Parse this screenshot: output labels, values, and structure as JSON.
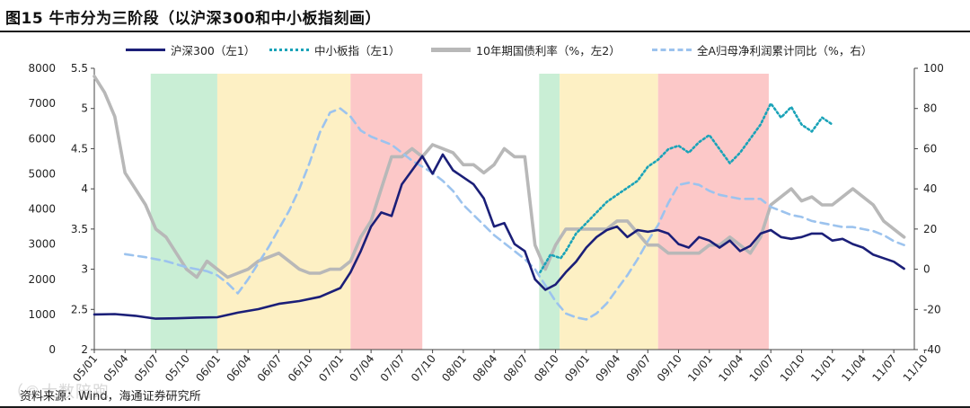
{
  "title": "图15 牛市分为三阶段（以沪深300和中小板指刻画）",
  "footer": "资料来源：Wind，海通证券研究所",
  "watermark": "（©大数陪跑",
  "colors": {
    "hs300": "#1b1f78",
    "zxb": "#1aa3b8",
    "bond": "#b8b8b8",
    "profit": "#9cc3ee",
    "phase_green": "#c9eed5",
    "phase_yellow": "#fdf0c4",
    "phase_red": "#fcc8c8"
  },
  "chart_data": {
    "type": "line",
    "legend": [
      "沪深300（左1）",
      "中小板指（左1）",
      "10年期国债利率（%，左2）",
      "全A归母净利润累计同比（%，右）"
    ],
    "x_ticks": [
      "05/01",
      "05/04",
      "05/07",
      "05/10",
      "06/01",
      "06/04",
      "06/07",
      "06/10",
      "07/01",
      "07/04",
      "07/07",
      "07/10",
      "08/01",
      "08/04",
      "08/07",
      "08/10",
      "09/01",
      "09/04",
      "09/07",
      "09/10",
      "10/01",
      "10/04",
      "10/07",
      "10/10",
      "11/01",
      "11/04",
      "11/07",
      "11/10"
    ],
    "y_left1": {
      "min": 0,
      "max": 8000,
      "ticks": [
        "0",
        "1000",
        "2000",
        "3000",
        "4000",
        "5000",
        "6000",
        "7000",
        "8000"
      ]
    },
    "y_left2": {
      "min": 2,
      "max": 5.5,
      "ticks": [
        "2",
        "2.5",
        "3",
        "3.5",
        "4",
        "4.5",
        "5",
        "5.5"
      ]
    },
    "y_right": {
      "min": -40,
      "max": 100,
      "ticks": [
        "-40",
        "-20",
        "0",
        "20",
        "40",
        "60",
        "80",
        "100"
      ]
    },
    "phases": [
      {
        "from": 5.5,
        "to": 12.0,
        "type": "green"
      },
      {
        "from": 12.0,
        "to": 25.0,
        "type": "yellow"
      },
      {
        "from": 25.0,
        "to": 32.0,
        "type": "red"
      },
      {
        "from": 43.4,
        "to": 45.4,
        "type": "green"
      },
      {
        "from": 45.4,
        "to": 55.0,
        "type": "yellow"
      },
      {
        "from": 55.0,
        "to": 65.8,
        "type": "red"
      }
    ],
    "series": [
      {
        "name": "沪深300（左1）",
        "axis": "left1",
        "points": [
          [
            0,
            1000
          ],
          [
            2,
            1010
          ],
          [
            4,
            960
          ],
          [
            6,
            880
          ],
          [
            8,
            890
          ],
          [
            10,
            910
          ],
          [
            12,
            920
          ],
          [
            14,
            1050
          ],
          [
            16,
            1150
          ],
          [
            18,
            1300
          ],
          [
            20,
            1380
          ],
          [
            22,
            1500
          ],
          [
            24,
            1750
          ],
          [
            25,
            2200
          ],
          [
            26,
            2800
          ],
          [
            27,
            3500
          ],
          [
            28,
            3900
          ],
          [
            29,
            3800
          ],
          [
            30,
            4700
          ],
          [
            31,
            5100
          ],
          [
            32,
            5500
          ],
          [
            33,
            5000
          ],
          [
            34,
            5550
          ],
          [
            35,
            5100
          ],
          [
            36,
            4900
          ],
          [
            37,
            4700
          ],
          [
            38,
            4300
          ],
          [
            39,
            3500
          ],
          [
            40,
            3600
          ],
          [
            41,
            3000
          ],
          [
            42,
            2800
          ],
          [
            43,
            2000
          ],
          [
            44,
            1700
          ],
          [
            45,
            1850
          ],
          [
            46,
            2200
          ],
          [
            47,
            2500
          ],
          [
            48,
            2900
          ],
          [
            49,
            3200
          ],
          [
            50,
            3400
          ],
          [
            51,
            3500
          ],
          [
            52,
            3200
          ],
          [
            53,
            3400
          ],
          [
            54,
            3350
          ],
          [
            55,
            3400
          ],
          [
            56,
            3300
          ],
          [
            57,
            3000
          ],
          [
            58,
            2900
          ],
          [
            59,
            3200
          ],
          [
            60,
            3100
          ],
          [
            61,
            2900
          ],
          [
            62,
            3100
          ],
          [
            63,
            2800
          ],
          [
            64,
            2950
          ],
          [
            65,
            3300
          ],
          [
            66,
            3400
          ],
          [
            67,
            3200
          ],
          [
            68,
            3150
          ],
          [
            69,
            3200
          ],
          [
            70,
            3300
          ],
          [
            71,
            3300
          ],
          [
            72,
            3100
          ],
          [
            73,
            3150
          ],
          [
            74,
            3000
          ],
          [
            75,
            2900
          ],
          [
            76,
            2700
          ],
          [
            77,
            2600
          ],
          [
            78,
            2500
          ],
          [
            79,
            2300
          ]
        ]
      },
      {
        "name": "中小板指（左1）",
        "axis": "left1",
        "points": [
          [
            43.5,
            2200
          ],
          [
            44.5,
            2700
          ],
          [
            45.5,
            2600
          ],
          [
            46,
            2800
          ],
          [
            47,
            3300
          ],
          [
            48,
            3600
          ],
          [
            49,
            3900
          ],
          [
            50,
            4200
          ],
          [
            51,
            4400
          ],
          [
            52,
            4600
          ],
          [
            53,
            4800
          ],
          [
            54,
            5200
          ],
          [
            55,
            5400
          ],
          [
            56,
            5700
          ],
          [
            57,
            5800
          ],
          [
            58,
            5600
          ],
          [
            59,
            5900
          ],
          [
            60,
            6100
          ],
          [
            61,
            5700
          ],
          [
            62,
            5300
          ],
          [
            63,
            5600
          ],
          [
            64,
            6000
          ],
          [
            65,
            6400
          ],
          [
            66,
            7000
          ],
          [
            67,
            6600
          ],
          [
            68,
            6900
          ],
          [
            69,
            6400
          ],
          [
            70,
            6200
          ],
          [
            71,
            6600
          ],
          [
            72,
            6400
          ]
        ]
      },
      {
        "name": "10年期国债利率（%，左2）",
        "axis": "left2",
        "points": [
          [
            0,
            5.4
          ],
          [
            1,
            5.2
          ],
          [
            2,
            4.9
          ],
          [
            3,
            4.2
          ],
          [
            4,
            4.0
          ],
          [
            5,
            3.8
          ],
          [
            6,
            3.5
          ],
          [
            7,
            3.4
          ],
          [
            8,
            3.2
          ],
          [
            9,
            3.0
          ],
          [
            10,
            2.9
          ],
          [
            11,
            3.1
          ],
          [
            12,
            3.0
          ],
          [
            13,
            2.9
          ],
          [
            14,
            2.95
          ],
          [
            15,
            3.0
          ],
          [
            16,
            3.1
          ],
          [
            17,
            3.15
          ],
          [
            18,
            3.2
          ],
          [
            19,
            3.1
          ],
          [
            20,
            3.0
          ],
          [
            21,
            2.95
          ],
          [
            22,
            2.95
          ],
          [
            23,
            3.0
          ],
          [
            24,
            3.0
          ],
          [
            25,
            3.1
          ],
          [
            26,
            3.4
          ],
          [
            27,
            3.6
          ],
          [
            28,
            4.0
          ],
          [
            29,
            4.4
          ],
          [
            30,
            4.4
          ],
          [
            31,
            4.5
          ],
          [
            32,
            4.4
          ],
          [
            33,
            4.55
          ],
          [
            34,
            4.5
          ],
          [
            35,
            4.45
          ],
          [
            36,
            4.3
          ],
          [
            37,
            4.3
          ],
          [
            38,
            4.2
          ],
          [
            39,
            4.3
          ],
          [
            40,
            4.5
          ],
          [
            41,
            4.4
          ],
          [
            42,
            4.4
          ],
          [
            43,
            3.3
          ],
          [
            44,
            3.0
          ],
          [
            45,
            3.3
          ],
          [
            46,
            3.5
          ],
          [
            47,
            3.5
          ],
          [
            48,
            3.5
          ],
          [
            49,
            3.5
          ],
          [
            50,
            3.5
          ],
          [
            51,
            3.6
          ],
          [
            52,
            3.6
          ],
          [
            53,
            3.45
          ],
          [
            54,
            3.3
          ],
          [
            55,
            3.3
          ],
          [
            56,
            3.2
          ],
          [
            57,
            3.2
          ],
          [
            58,
            3.2
          ],
          [
            59,
            3.2
          ],
          [
            60,
            3.3
          ],
          [
            61,
            3.3
          ],
          [
            62,
            3.4
          ],
          [
            63,
            3.3
          ],
          [
            64,
            3.2
          ],
          [
            65,
            3.4
          ],
          [
            66,
            3.8
          ],
          [
            67,
            3.9
          ],
          [
            68,
            4.0
          ],
          [
            69,
            3.85
          ],
          [
            70,
            3.9
          ],
          [
            71,
            3.8
          ],
          [
            72,
            3.8
          ],
          [
            73,
            3.9
          ],
          [
            74,
            4.0
          ],
          [
            75,
            3.9
          ],
          [
            76,
            3.8
          ],
          [
            77,
            3.6
          ],
          [
            78,
            3.5
          ],
          [
            79,
            3.4
          ]
        ]
      },
      {
        "name": "全A归母净利润累计同比（%，右）",
        "axis": "right",
        "points": [
          [
            3,
            7.5
          ],
          [
            5,
            6
          ],
          [
            7,
            4
          ],
          [
            9,
            1
          ],
          [
            11,
            -1
          ],
          [
            12,
            -3
          ],
          [
            13,
            -7
          ],
          [
            14,
            -12
          ],
          [
            15,
            -5
          ],
          [
            16,
            3
          ],
          [
            17,
            11
          ],
          [
            18,
            20
          ],
          [
            19,
            29
          ],
          [
            20,
            40
          ],
          [
            21,
            53
          ],
          [
            22,
            68
          ],
          [
            23,
            78
          ],
          [
            24,
            80
          ],
          [
            25,
            76
          ],
          [
            26,
            69
          ],
          [
            27,
            66
          ],
          [
            28,
            64
          ],
          [
            29,
            62
          ],
          [
            30,
            58
          ],
          [
            31,
            54
          ],
          [
            32,
            51
          ],
          [
            33,
            48
          ],
          [
            34,
            44
          ],
          [
            35,
            39
          ],
          [
            36,
            32
          ],
          [
            37,
            27
          ],
          [
            38,
            22
          ],
          [
            39,
            17
          ],
          [
            40,
            13
          ],
          [
            41,
            9
          ],
          [
            42,
            5
          ],
          [
            43,
            0
          ],
          [
            44,
            -8
          ],
          [
            45,
            -16
          ],
          [
            46,
            -22
          ],
          [
            47,
            -24
          ],
          [
            48,
            -25
          ],
          [
            49,
            -22
          ],
          [
            50,
            -17
          ],
          [
            51,
            -10
          ],
          [
            52,
            -3
          ],
          [
            53,
            5
          ],
          [
            54,
            14
          ],
          [
            55,
            22
          ],
          [
            56,
            33
          ],
          [
            57,
            42
          ],
          [
            58,
            43
          ],
          [
            59,
            42
          ],
          [
            60,
            39
          ],
          [
            61,
            37
          ],
          [
            62,
            36
          ],
          [
            63,
            35
          ],
          [
            64,
            35
          ],
          [
            65,
            35
          ],
          [
            66,
            31
          ],
          [
            67,
            29
          ],
          [
            68,
            27
          ],
          [
            69,
            26
          ],
          [
            70,
            24
          ],
          [
            71,
            23
          ],
          [
            72,
            22
          ],
          [
            73,
            21
          ],
          [
            74,
            21
          ],
          [
            75,
            20
          ],
          [
            76,
            19
          ],
          [
            77,
            17
          ],
          [
            78,
            14
          ],
          [
            79,
            12
          ]
        ]
      }
    ]
  }
}
